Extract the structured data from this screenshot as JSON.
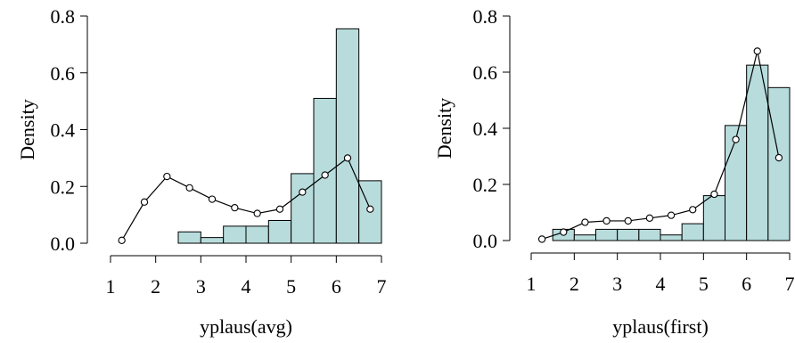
{
  "chart_data": [
    {
      "type": "bar",
      "xlabel": "yplaus(avg)",
      "ylabel": "Density",
      "xlim": [
        1,
        7
      ],
      "ylim": [
        0,
        0.8
      ],
      "xticks": [
        "1",
        "2",
        "3",
        "4",
        "5",
        "6",
        "7"
      ],
      "yticks": [
        "0.0",
        "0.2",
        "0.4",
        "0.6",
        "0.8"
      ],
      "histogram": {
        "bin_edges": [
          2.5,
          3.0,
          3.5,
          4.0,
          4.5,
          5.0,
          5.5,
          6.0,
          6.5,
          7.0
        ],
        "values": [
          0.04,
          0.02,
          0.06,
          0.06,
          0.08,
          0.245,
          0.51,
          0.755,
          0.22
        ]
      },
      "density_line": {
        "x": [
          1.25,
          1.75,
          2.25,
          2.75,
          3.25,
          3.75,
          4.25,
          4.75,
          5.25,
          5.75,
          6.25,
          6.75
        ],
        "y": [
          0.01,
          0.145,
          0.235,
          0.195,
          0.155,
          0.125,
          0.105,
          0.12,
          0.18,
          0.24,
          0.3,
          0.12
        ]
      }
    },
    {
      "type": "bar",
      "xlabel": "yplaus(first)",
      "ylabel": "Density",
      "xlim": [
        1,
        7
      ],
      "ylim": [
        0,
        0.8
      ],
      "xticks": [
        "1",
        "2",
        "3",
        "4",
        "5",
        "6",
        "7"
      ],
      "yticks": [
        "0.0",
        "0.2",
        "0.4",
        "0.6",
        "0.8"
      ],
      "histogram": {
        "bin_edges": [
          1.5,
          2.0,
          2.5,
          3.0,
          3.5,
          4.0,
          4.5,
          5.0,
          5.5,
          6.0,
          6.5,
          7.0
        ],
        "values": [
          0.04,
          0.02,
          0.04,
          0.04,
          0.04,
          0.02,
          0.06,
          0.16,
          0.41,
          0.625,
          0.545
        ]
      },
      "density_line": {
        "x": [
          1.25,
          1.75,
          2.25,
          2.75,
          3.25,
          3.75,
          4.25,
          4.75,
          5.25,
          5.75,
          6.25,
          6.75
        ],
        "y": [
          0.005,
          0.03,
          0.065,
          0.07,
          0.07,
          0.08,
          0.09,
          0.11,
          0.165,
          0.36,
          0.675,
          0.295
        ]
      }
    }
  ]
}
